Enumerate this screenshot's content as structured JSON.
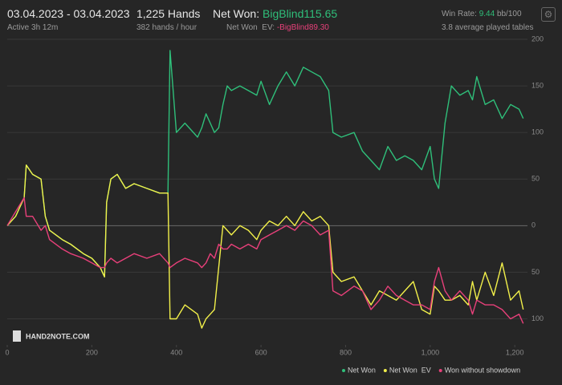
{
  "header": {
    "date_range": "03.04.2023 - 03.04.2023",
    "active": "Active 3h 12m",
    "hands": "1,225 Hands",
    "hands_per_hour": "382 hands / hour",
    "net_won_label": "Net Won:",
    "net_won_value": "BigBlind115.65",
    "ev_label": "Net Won  EV:",
    "ev_value": "-BigBlind89.30",
    "win_rate_label": "Win Rate:",
    "win_rate_value": "9.44",
    "win_rate_unit": "bb/100",
    "tables": "3.8 average played tables"
  },
  "watermark": "HAND2NOTE.COM",
  "chart_data": {
    "type": "line",
    "x": [
      0,
      20,
      40,
      45,
      60,
      80,
      90,
      100,
      130,
      150,
      180,
      200,
      220,
      230,
      235,
      245,
      260,
      280,
      300,
      330,
      360,
      380,
      385,
      400,
      420,
      450,
      460,
      470,
      480,
      490,
      500,
      510,
      520,
      530,
      550,
      570,
      590,
      600,
      620,
      640,
      660,
      680,
      700,
      720,
      740,
      760,
      770,
      790,
      820,
      840,
      860,
      880,
      900,
      920,
      940,
      960,
      980,
      1000,
      1010,
      1020,
      1035,
      1050,
      1070,
      1090,
      1100,
      1110,
      1130,
      1150,
      1170,
      1190,
      1210,
      1220
    ],
    "series": [
      {
        "name": "Net Won",
        "color": "#2fbf7a",
        "values": [
          0,
          10,
          30,
          65,
          55,
          50,
          10,
          -5,
          -15,
          -20,
          -30,
          -35,
          -45,
          -55,
          25,
          50,
          55,
          40,
          45,
          40,
          35,
          35,
          188,
          100,
          110,
          95,
          105,
          120,
          110,
          100,
          105,
          130,
          150,
          145,
          150,
          145,
          140,
          155,
          130,
          150,
          165,
          150,
          170,
          165,
          160,
          145,
          100,
          95,
          100,
          80,
          70,
          60,
          85,
          70,
          75,
          70,
          60,
          85,
          50,
          40,
          110,
          150,
          140,
          145,
          135,
          160,
          130,
          135,
          115,
          130,
          125,
          115
        ]
      },
      {
        "name": "Net Won  EV",
        "color": "#f2f04a",
        "values": [
          0,
          10,
          30,
          65,
          55,
          50,
          10,
          -5,
          -15,
          -20,
          -30,
          -35,
          -45,
          -55,
          25,
          50,
          55,
          40,
          45,
          40,
          35,
          35,
          -100,
          -100,
          -85,
          -95,
          -110,
          -100,
          -95,
          -90,
          -45,
          0,
          -5,
          -10,
          0,
          -5,
          -15,
          -5,
          5,
          0,
          10,
          0,
          15,
          5,
          10,
          0,
          -50,
          -60,
          -55,
          -70,
          -85,
          -70,
          -75,
          -80,
          -70,
          -60,
          -90,
          -95,
          -65,
          -70,
          -80,
          -80,
          -75,
          -85,
          -60,
          -80,
          -50,
          -75,
          -40,
          -80,
          -70,
          -90
        ]
      },
      {
        "name": "Won without showdown",
        "color": "#e8407a",
        "values": [
          0,
          15,
          30,
          10,
          10,
          -5,
          0,
          -15,
          -25,
          -30,
          -35,
          -40,
          -45,
          -45,
          -40,
          -35,
          -40,
          -35,
          -30,
          -35,
          -30,
          -40,
          -45,
          -40,
          -35,
          -40,
          -45,
          -40,
          -30,
          -35,
          -20,
          -25,
          -25,
          -20,
          -25,
          -20,
          -25,
          -15,
          -10,
          -5,
          0,
          -5,
          5,
          0,
          -10,
          -5,
          -70,
          -75,
          -65,
          -70,
          -90,
          -80,
          -65,
          -75,
          -80,
          -85,
          -85,
          -90,
          -60,
          -45,
          -70,
          -80,
          -70,
          -80,
          -95,
          -80,
          -85,
          -85,
          -90,
          -100,
          -95,
          -105
        ]
      }
    ],
    "xlim": [
      0,
      1230
    ],
    "ylim": [
      -128,
      200
    ],
    "xticks": [
      0,
      200,
      400,
      600,
      800,
      {
        "value": 1000,
        "label": "1,000"
      },
      {
        "value": 1200,
        "label": "1,200"
      }
    ],
    "yticks": [
      {
        "value": -100,
        "label": "100"
      },
      {
        "value": -50,
        "label": "50"
      },
      0,
      50,
      100,
      150,
      200
    ],
    "grid": true
  }
}
